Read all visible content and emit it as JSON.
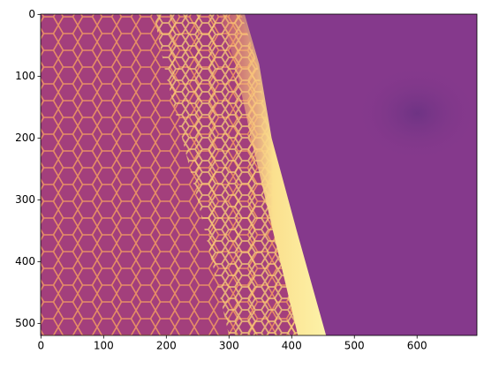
{
  "chart_data": {
    "type": "image",
    "xlim": [
      -0.5,
      695.5
    ],
    "ylim": [
      519.5,
      -0.5
    ],
    "xticks": [
      0,
      100,
      200,
      300,
      400,
      500,
      600
    ],
    "yticks": [
      0,
      100,
      200,
      300,
      400,
      500
    ]
  }
}
